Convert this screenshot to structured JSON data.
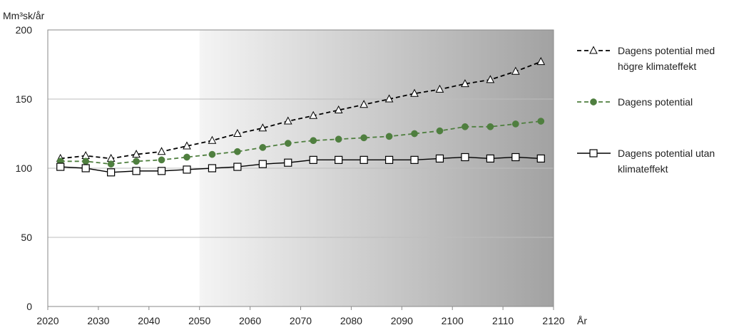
{
  "chart_data": {
    "type": "line",
    "ylabel": "Mm³sk/år",
    "xlabel": "År",
    "xlim": [
      2020,
      2120
    ],
    "ylim": [
      0,
      200
    ],
    "xticks": [
      2020,
      2030,
      2040,
      2050,
      2060,
      2070,
      2080,
      2090,
      2100,
      2110,
      2120
    ],
    "yticks": [
      0,
      50,
      100,
      150,
      200
    ],
    "grid": "horizontal",
    "shaded_region": {
      "from": 2050,
      "to": 2120
    },
    "legend_position": "right",
    "x": [
      2022.5,
      2027.5,
      2032.5,
      2037.5,
      2042.5,
      2047.5,
      2052.5,
      2057.5,
      2062.5,
      2067.5,
      2072.5,
      2077.5,
      2082.5,
      2087.5,
      2092.5,
      2097.5,
      2102.5,
      2107.5,
      2112.5,
      2117.5
    ],
    "series": [
      {
        "name": "Dagens potential med högre klimateffekt",
        "legend_lines": [
          "Dagens potential med",
          "högre klimateffekt"
        ],
        "style": "dashed",
        "marker": "triangle",
        "color": "#000000",
        "values": [
          107,
          109,
          107,
          110,
          112,
          116,
          120,
          125,
          129,
          134,
          138,
          142,
          146,
          150,
          154,
          157,
          161,
          164,
          170,
          177
        ]
      },
      {
        "name": "Dagens potential",
        "legend_lines": [
          "Dagens potential"
        ],
        "style": "dashed",
        "marker": "circle",
        "color": "#4f7f3f",
        "values": [
          105,
          105,
          103,
          105,
          106,
          108,
          110,
          112,
          115,
          118,
          120,
          121,
          122,
          123,
          125,
          127,
          130,
          130,
          132,
          134
        ]
      },
      {
        "name": "Dagens potential utan klimateffekt",
        "legend_lines": [
          "Dagens potential utan",
          "klimateffekt"
        ],
        "style": "solid",
        "marker": "square",
        "color": "#000000",
        "values": [
          101,
          100,
          97,
          98,
          98,
          99,
          100,
          101,
          103,
          104,
          106,
          106,
          106,
          106,
          106,
          107,
          108,
          107,
          108,
          107
        ]
      }
    ]
  }
}
